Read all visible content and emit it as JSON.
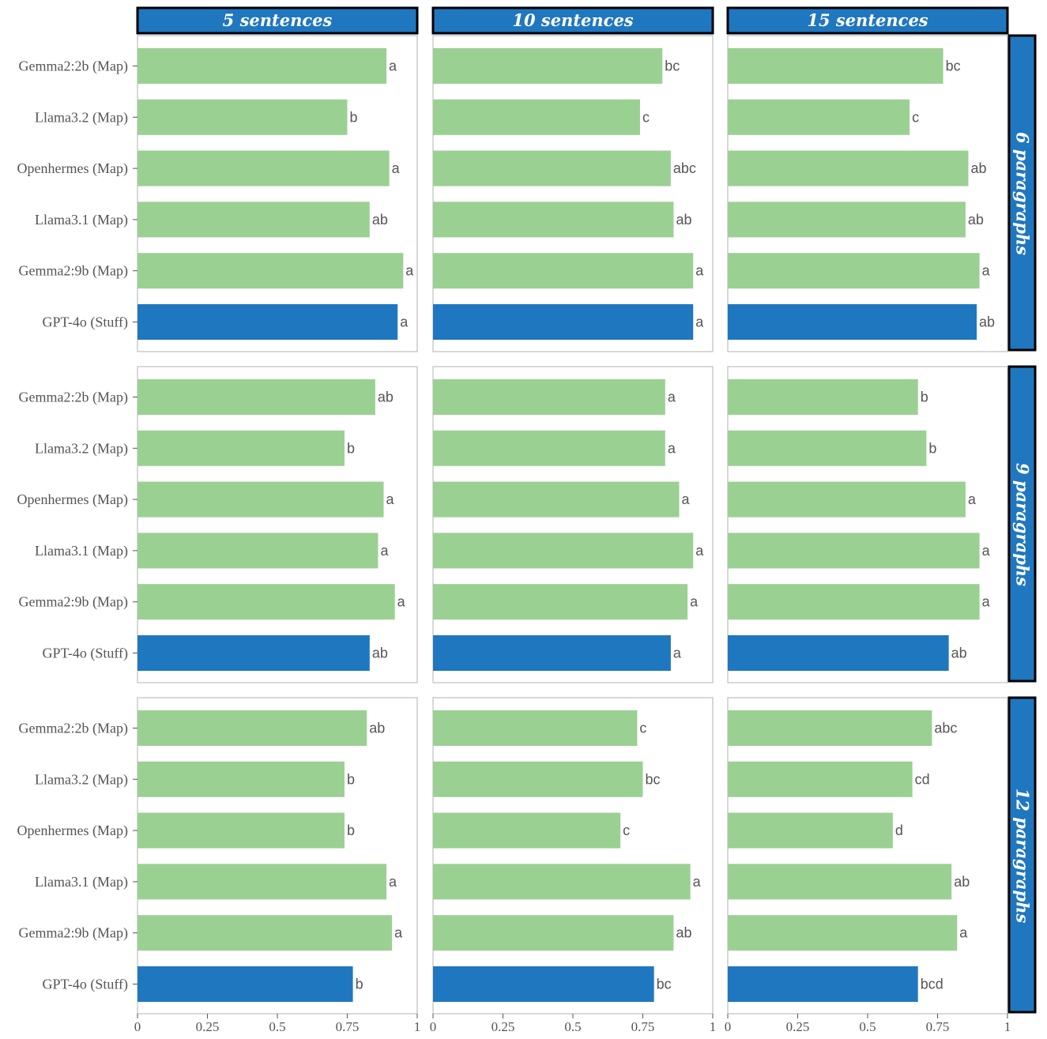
{
  "chart_data": {
    "type": "bar",
    "orientation": "horizontal",
    "facet_columns": [
      "5 sentences",
      "10 sentences",
      "15 sentences"
    ],
    "facet_rows": [
      "6 paragraphs",
      "9 paragraphs",
      "12 paragraphs"
    ],
    "categories": [
      "Gemma2:2b (Map)",
      "Llama3.2 (Map)",
      "Openhermes (Map)",
      "Llama3.1 (Map)",
      "Gemma2:9b (Map)",
      "GPT-4o (Stuff)"
    ],
    "xlim": [
      0,
      1
    ],
    "xticks": [
      "0",
      "0.25",
      "0.5",
      "0.75",
      "1"
    ],
    "colors": {
      "map": "#9bd093",
      "stuff": "#1f77c0",
      "strip": "#1f77c0"
    },
    "panels": [
      {
        "row": 0,
        "col": 0,
        "values": [
          0.89,
          0.75,
          0.9,
          0.83,
          0.95,
          0.93
        ],
        "labels": [
          "a",
          "b",
          "a",
          "ab",
          "a",
          "a"
        ]
      },
      {
        "row": 0,
        "col": 1,
        "values": [
          0.82,
          0.74,
          0.85,
          0.86,
          0.93,
          0.93
        ],
        "labels": [
          "bc",
          "c",
          "abc",
          "ab",
          "a",
          "a"
        ]
      },
      {
        "row": 0,
        "col": 2,
        "values": [
          0.77,
          0.65,
          0.86,
          0.85,
          0.9,
          0.89
        ],
        "labels": [
          "bc",
          "c",
          "ab",
          "ab",
          "a",
          "ab"
        ]
      },
      {
        "row": 1,
        "col": 0,
        "values": [
          0.85,
          0.74,
          0.88,
          0.86,
          0.92,
          0.83
        ],
        "labels": [
          "ab",
          "b",
          "a",
          "a",
          "a",
          "ab"
        ]
      },
      {
        "row": 1,
        "col": 1,
        "values": [
          0.83,
          0.83,
          0.88,
          0.93,
          0.91,
          0.85
        ],
        "labels": [
          "a",
          "a",
          "a",
          "a",
          "a",
          "a"
        ]
      },
      {
        "row": 1,
        "col": 2,
        "values": [
          0.68,
          0.71,
          0.85,
          0.9,
          0.9,
          0.79
        ],
        "labels": [
          "b",
          "b",
          "a",
          "a",
          "a",
          "ab"
        ]
      },
      {
        "row": 2,
        "col": 0,
        "values": [
          0.82,
          0.74,
          0.74,
          0.89,
          0.91,
          0.77
        ],
        "labels": [
          "ab",
          "b",
          "b",
          "a",
          "a",
          "b"
        ]
      },
      {
        "row": 2,
        "col": 1,
        "values": [
          0.73,
          0.75,
          0.67,
          0.92,
          0.86,
          0.79
        ],
        "labels": [
          "c",
          "bc",
          "c",
          "a",
          "ab",
          "bc"
        ]
      },
      {
        "row": 2,
        "col": 2,
        "values": [
          0.73,
          0.66,
          0.59,
          0.8,
          0.82,
          0.68
        ],
        "labels": [
          "abc",
          "cd",
          "d",
          "ab",
          "a",
          "bcd"
        ]
      }
    ]
  }
}
